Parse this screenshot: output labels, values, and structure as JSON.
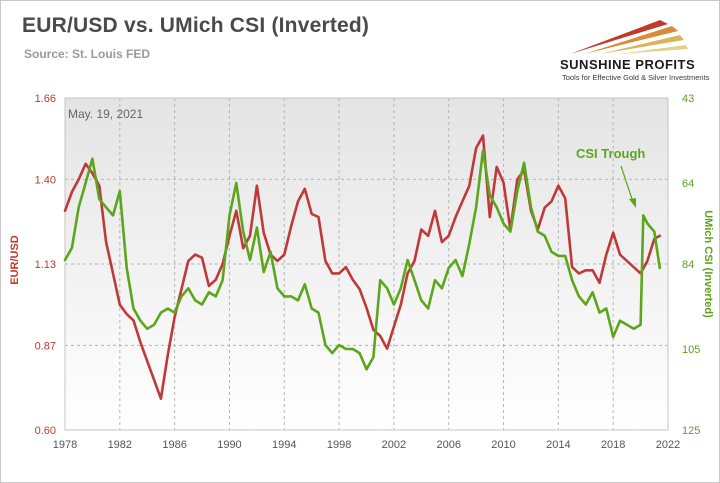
{
  "header": {
    "title": "EUR/USD vs. UMich CSI (Inverted)",
    "source": "Source: St. Louis FED"
  },
  "logo": {
    "name": "SUNSHINE PROFITS",
    "tagline": "Tools for Effective Gold & Silver Investments"
  },
  "chart_data": {
    "type": "line",
    "date_label": "May. 19, 2021",
    "annotation": "CSI Trough",
    "ylabel_left": "EUR/USD",
    "ylabel_right": "UMich CSI (Inverted)",
    "ylim_left": [
      0.6,
      1.66
    ],
    "ylim_right": [
      43,
      125
    ],
    "right_axis_inverted": true,
    "xlim": [
      1978,
      2022
    ],
    "x_ticks": [
      "1978",
      "1982",
      "1986",
      "1990",
      "1994",
      "1998",
      "2002",
      "2006",
      "2010",
      "2014",
      "2018",
      "2022"
    ],
    "y_ticks_left": [
      "1.66",
      "1.40",
      "1.13",
      "0.87",
      "0.60"
    ],
    "y_ticks_right": [
      "43",
      "64",
      "84",
      "105",
      "125"
    ],
    "grid": true,
    "colors": {
      "eurusd": "#c0393a",
      "csi": "#5ca61c",
      "left_axis": "#c0392b",
      "right_axis": "#5fa21c"
    },
    "series": [
      {
        "name": "EUR/USD",
        "axis": "left",
        "x": [
          1978.0,
          1978.5,
          1979.0,
          1979.5,
          1980.0,
          1980.5,
          1981.0,
          1981.5,
          1982.0,
          1982.5,
          1983.0,
          1983.5,
          1984.0,
          1984.5,
          1985.0,
          1985.5,
          1986.0,
          1986.5,
          1987.0,
          1987.5,
          1988.0,
          1988.5,
          1989.0,
          1989.5,
          1990.0,
          1990.5,
          1991.0,
          1991.5,
          1992.0,
          1992.5,
          1993.0,
          1993.5,
          1994.0,
          1994.5,
          1995.0,
          1995.5,
          1996.0,
          1996.5,
          1997.0,
          1997.5,
          1998.0,
          1998.5,
          1999.0,
          1999.5,
          2000.0,
          2000.5,
          2001.0,
          2001.5,
          2002.0,
          2002.5,
          2003.0,
          2003.5,
          2004.0,
          2004.5,
          2005.0,
          2005.5,
          2006.0,
          2006.5,
          2007.0,
          2007.5,
          2008.0,
          2008.5,
          2009.0,
          2009.5,
          2010.0,
          2010.5,
          2011.0,
          2011.5,
          2012.0,
          2012.5,
          2013.0,
          2013.5,
          2014.0,
          2014.5,
          2015.0,
          2015.5,
          2016.0,
          2016.5,
          2017.0,
          2017.5,
          2018.0,
          2018.5,
          2019.0,
          2019.5,
          2020.0,
          2020.5,
          2021.0,
          2021.4
        ],
        "values": [
          1.3,
          1.36,
          1.4,
          1.45,
          1.42,
          1.38,
          1.2,
          1.1,
          1.0,
          0.97,
          0.95,
          0.88,
          0.82,
          0.76,
          0.7,
          0.84,
          0.96,
          1.05,
          1.14,
          1.16,
          1.15,
          1.06,
          1.08,
          1.13,
          1.22,
          1.3,
          1.18,
          1.22,
          1.38,
          1.23,
          1.16,
          1.14,
          1.16,
          1.25,
          1.33,
          1.37,
          1.29,
          1.28,
          1.14,
          1.1,
          1.1,
          1.12,
          1.08,
          1.05,
          0.99,
          0.92,
          0.9,
          0.86,
          0.93,
          1.0,
          1.1,
          1.14,
          1.24,
          1.22,
          1.3,
          1.2,
          1.22,
          1.28,
          1.33,
          1.38,
          1.5,
          1.54,
          1.28,
          1.44,
          1.39,
          1.24,
          1.4,
          1.43,
          1.3,
          1.24,
          1.31,
          1.33,
          1.38,
          1.34,
          1.12,
          1.1,
          1.11,
          1.11,
          1.07,
          1.16,
          1.23,
          1.16,
          1.14,
          1.12,
          1.1,
          1.14,
          1.21,
          1.22
        ]
      },
      {
        "name": "UMich CSI (Inverted)",
        "axis": "right",
        "x": [
          1978.0,
          1978.5,
          1979.0,
          1979.5,
          1980.0,
          1980.5,
          1981.0,
          1981.5,
          1982.0,
          1982.5,
          1983.0,
          1983.5,
          1984.0,
          1984.5,
          1985.0,
          1985.5,
          1986.0,
          1986.5,
          1987.0,
          1987.5,
          1988.0,
          1988.5,
          1989.0,
          1989.5,
          1990.0,
          1990.5,
          1991.0,
          1991.5,
          1992.0,
          1992.5,
          1993.0,
          1993.5,
          1994.0,
          1994.5,
          1995.0,
          1995.5,
          1996.0,
          1996.5,
          1997.0,
          1997.5,
          1998.0,
          1998.5,
          1999.0,
          1999.5,
          2000.0,
          2000.5,
          2001.0,
          2001.5,
          2002.0,
          2002.5,
          2003.0,
          2003.5,
          2004.0,
          2004.5,
          2005.0,
          2005.5,
          2006.0,
          2006.5,
          2007.0,
          2007.5,
          2008.0,
          2008.5,
          2009.0,
          2009.5,
          2010.0,
          2010.5,
          2011.0,
          2011.5,
          2012.0,
          2012.5,
          2013.0,
          2013.5,
          2014.0,
          2014.5,
          2015.0,
          2015.5,
          2016.0,
          2016.5,
          2017.0,
          2017.5,
          2018.0,
          2018.5,
          2019.0,
          2019.5,
          2020.0,
          2020.2,
          2020.5,
          2021.0,
          2021.4
        ],
        "values": [
          83,
          80,
          70,
          64,
          58,
          68,
          70,
          72,
          66,
          85,
          95,
          98,
          100,
          99,
          96,
          95,
          96,
          92,
          90,
          93,
          94,
          91,
          92,
          88,
          72,
          64,
          76,
          83,
          75,
          86,
          81,
          90,
          92,
          92,
          93,
          89,
          95,
          96,
          104,
          106,
          104,
          105,
          105,
          106,
          110,
          107,
          88,
          90,
          94,
          90,
          83,
          88,
          93,
          95,
          88,
          90,
          85,
          83,
          87,
          79,
          70,
          56,
          67,
          70,
          74,
          76,
          66,
          59,
          70,
          76,
          77,
          81,
          82,
          82,
          88,
          92,
          94,
          91,
          96,
          95,
          102,
          98,
          99,
          100,
          99,
          72,
          74,
          76,
          85
        ]
      }
    ]
  }
}
